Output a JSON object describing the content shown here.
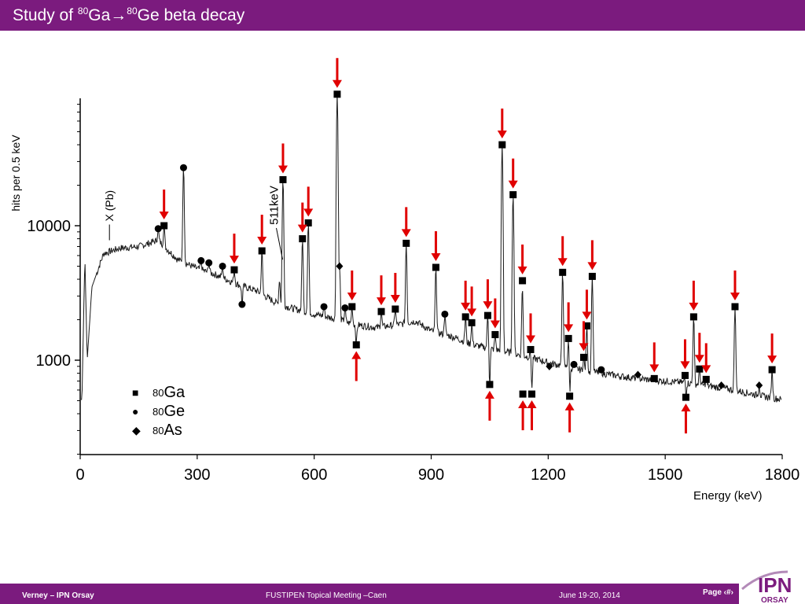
{
  "slide": {
    "title_prefix": "Study of ",
    "title_sup1": "80",
    "title_mid": "Ga→",
    "title_sup2": "80",
    "title_suffix": "Ge beta decay"
  },
  "legend": [
    {
      "mass": "80",
      "element": "Ga",
      "symbol": "square"
    },
    {
      "mass": "80",
      "element": "Ge",
      "symbol": "circle"
    },
    {
      "mass": "80",
      "element": "As",
      "symbol": "diamond"
    }
  ],
  "footer": {
    "left": "Verney – IPN Orsay",
    "center": "FUSTIPEN Topical Meeting –Caen",
    "date": "June 19-20, 2014",
    "page": "Page ‹#›"
  },
  "logo": {
    "top_text": "IPN",
    "bottom_text": "ORSAY"
  },
  "colors": {
    "banner": "#7b1b7e",
    "arrow": "#e00000",
    "spectrum": "#1a1a1a"
  },
  "chart_data": {
    "type": "line",
    "xlabel": "Energy (keV)",
    "ylabel": "hits per 0.5 keV",
    "xlim": [
      0,
      1800
    ],
    "y_scale": "log",
    "x_ticks": [
      0,
      300,
      600,
      900,
      1200,
      1500,
      1800
    ],
    "y_ticks": [
      1000,
      10000
    ],
    "annotations": [
      {
        "text": "X (Pb)",
        "x": 75,
        "y": 7000
      },
      {
        "text": "511keV",
        "x": 511,
        "y": 11000
      }
    ],
    "baseline": [
      [
        5,
        600
      ],
      [
        12,
        6000
      ],
      [
        18,
        1000
      ],
      [
        30,
        3500
      ],
      [
        60,
        6200
      ],
      [
        100,
        6800
      ],
      [
        150,
        7000
      ],
      [
        200,
        7800
      ],
      [
        250,
        5600
      ],
      [
        300,
        4800
      ],
      [
        350,
        4300
      ],
      [
        400,
        3700
      ],
      [
        450,
        3300
      ],
      [
        500,
        2700
      ],
      [
        540,
        2450
      ],
      [
        600,
        2200
      ],
      [
        650,
        2050
      ],
      [
        700,
        1850
      ],
      [
        760,
        1750
      ],
      [
        820,
        1850
      ],
      [
        860,
        1950
      ],
      [
        900,
        1650
      ],
      [
        960,
        1480
      ],
      [
        1000,
        1320
      ],
      [
        1050,
        1220
      ],
      [
        1100,
        1140
      ],
      [
        1150,
        1060
      ],
      [
        1200,
        960
      ],
      [
        1250,
        890
      ],
      [
        1300,
        830
      ],
      [
        1350,
        790
      ],
      [
        1400,
        750
      ],
      [
        1450,
        720
      ],
      [
        1500,
        700
      ],
      [
        1550,
        680
      ],
      [
        1600,
        650
      ],
      [
        1650,
        620
      ],
      [
        1700,
        580
      ],
      [
        1750,
        540
      ],
      [
        1800,
        510
      ]
    ],
    "peaks": [
      {
        "x": 200,
        "y": 9500,
        "isotope": "80Ge"
      },
      {
        "x": 215,
        "y": 10000,
        "isotope": "80Ga",
        "arrow": "down"
      },
      {
        "x": 265,
        "y": 27000,
        "isotope": "80Ge"
      },
      {
        "x": 310,
        "y": 5500,
        "isotope": "80Ge"
      },
      {
        "x": 330,
        "y": 5300,
        "isotope": "80Ge"
      },
      {
        "x": 365,
        "y": 5000,
        "isotope": "80Ge"
      },
      {
        "x": 395,
        "y": 4700,
        "isotope": "80Ga",
        "arrow": "down"
      },
      {
        "x": 415,
        "y": 2600,
        "isotope": "80Ge"
      },
      {
        "x": 466,
        "y": 6500,
        "isotope": "80Ga",
        "arrow": "down"
      },
      {
        "x": 511,
        "y": 4000
      },
      {
        "x": 520,
        "y": 22000,
        "isotope": "80Ga",
        "arrow": "down"
      },
      {
        "x": 570,
        "y": 8000,
        "isotope": "80Ga",
        "arrow": "down"
      },
      {
        "x": 585,
        "y": 10500,
        "isotope": "80Ga",
        "arrow": "down"
      },
      {
        "x": 625,
        "y": 2500,
        "isotope": "80Ge"
      },
      {
        "x": 659,
        "y": 95000,
        "isotope": "80Ga",
        "arrow": "down"
      },
      {
        "x": 665,
        "y": 5000,
        "isotope": "80As"
      },
      {
        "x": 679,
        "y": 2450,
        "isotope": "80Ge"
      },
      {
        "x": 697,
        "y": 2500,
        "isotope": "80Ga",
        "arrow": "down"
      },
      {
        "x": 708,
        "y": 1300,
        "isotope": "80Ga",
        "arrow": "up"
      },
      {
        "x": 772,
        "y": 2300,
        "isotope": "80Ga",
        "arrow": "down"
      },
      {
        "x": 808,
        "y": 2400,
        "isotope": "80Ga",
        "arrow": "down"
      },
      {
        "x": 836,
        "y": 7400,
        "isotope": "80Ga",
        "arrow": "down"
      },
      {
        "x": 912,
        "y": 4900,
        "isotope": "80Ga",
        "arrow": "down"
      },
      {
        "x": 935,
        "y": 2200,
        "isotope": "80Ge"
      },
      {
        "x": 988,
        "y": 2100,
        "isotope": "80Ga",
        "arrow": "down"
      },
      {
        "x": 1004,
        "y": 1900,
        "isotope": "80Ga",
        "arrow": "down"
      },
      {
        "x": 1045,
        "y": 2150,
        "isotope": "80Ga",
        "arrow": "down"
      },
      {
        "x": 1050,
        "y": 660,
        "isotope": "80Ga",
        "arrow": "up"
      },
      {
        "x": 1064,
        "y": 1550,
        "isotope": "80Ga",
        "arrow": "down"
      },
      {
        "x": 1082,
        "y": 40000,
        "isotope": "80Ga",
        "arrow": "down"
      },
      {
        "x": 1110,
        "y": 17000,
        "isotope": "80Ga",
        "arrow": "down"
      },
      {
        "x": 1134,
        "y": 3900,
        "isotope": "80Ga",
        "arrow": "down"
      },
      {
        "x": 1135,
        "y": 560,
        "isotope": "80Ga",
        "arrow": "up"
      },
      {
        "x": 1155,
        "y": 1200,
        "isotope": "80Ga",
        "arrow": "down"
      },
      {
        "x": 1158,
        "y": 560,
        "isotope": "80Ga",
        "arrow": "up"
      },
      {
        "x": 1203,
        "y": 900,
        "isotope": "80As"
      },
      {
        "x": 1237,
        "y": 4500,
        "isotope": "80Ga",
        "arrow": "down"
      },
      {
        "x": 1252,
        "y": 1450,
        "isotope": "80Ga",
        "arrow": "down"
      },
      {
        "x": 1255,
        "y": 540,
        "isotope": "80Ga",
        "arrow": "up"
      },
      {
        "x": 1266,
        "y": 930,
        "isotope": "80Ge"
      },
      {
        "x": 1291,
        "y": 1050,
        "isotope": "80Ga",
        "arrow": "down"
      },
      {
        "x": 1299,
        "y": 1800,
        "isotope": "80Ga",
        "arrow": "down"
      },
      {
        "x": 1313,
        "y": 4200,
        "isotope": "80Ga",
        "arrow": "down"
      },
      {
        "x": 1336,
        "y": 850,
        "isotope": "80Ge"
      },
      {
        "x": 1430,
        "y": 780,
        "isotope": "80As"
      },
      {
        "x": 1472,
        "y": 730,
        "isotope": "80Ga",
        "arrow": "down"
      },
      {
        "x": 1551,
        "y": 770,
        "isotope": "80Ga",
        "arrow": "down"
      },
      {
        "x": 1553,
        "y": 530,
        "isotope": "80Ga",
        "arrow": "up"
      },
      {
        "x": 1573,
        "y": 2100,
        "isotope": "80Ga",
        "arrow": "down"
      },
      {
        "x": 1588,
        "y": 860,
        "isotope": "80Ga",
        "arrow": "down"
      },
      {
        "x": 1605,
        "y": 720,
        "isotope": "80Ga",
        "arrow": "down"
      },
      {
        "x": 1644,
        "y": 650,
        "isotope": "80As"
      },
      {
        "x": 1679,
        "y": 2500,
        "isotope": "80Ga",
        "arrow": "down"
      },
      {
        "x": 1741,
        "y": 650,
        "isotope": "80As"
      },
      {
        "x": 1774,
        "y": 850,
        "isotope": "80Ga",
        "arrow": "down"
      }
    ]
  }
}
